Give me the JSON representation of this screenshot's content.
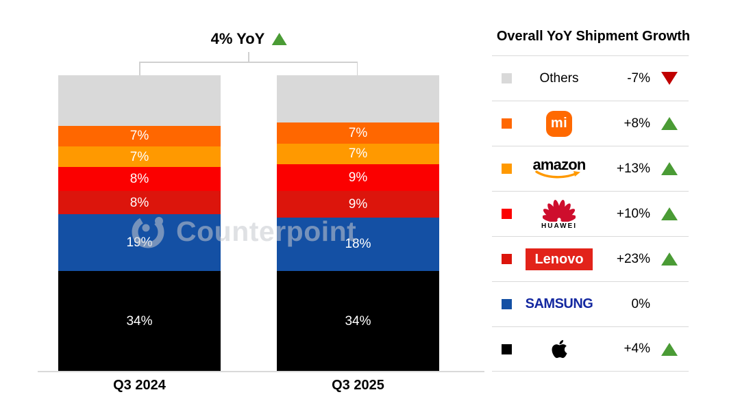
{
  "annotation": {
    "label": "4% YoY",
    "direction": "up"
  },
  "watermark": {
    "text": "Counterpoint"
  },
  "chart_data": {
    "type": "bar",
    "stacked": true,
    "unit": "%",
    "title": "4% YoY",
    "categories": [
      "Q3 2024",
      "Q3 2025"
    ],
    "ylim": [
      0,
      100
    ],
    "legend_position": "right",
    "series": [
      {
        "name": "Others",
        "color": "#d9d9d9",
        "values": [
          17,
          16
        ],
        "labels": [
          "",
          ""
        ],
        "yoy": "-7%"
      },
      {
        "name": "Xiaomi",
        "color": "#ff6700",
        "values": [
          7,
          7
        ],
        "labels": [
          "7%",
          "7%"
        ],
        "yoy": "+8%"
      },
      {
        "name": "Amazon",
        "color": "#ff9900",
        "values": [
          7,
          7
        ],
        "labels": [
          "7%",
          "7%"
        ],
        "yoy": "+13%"
      },
      {
        "name": "Huawei",
        "color": "#fb0000",
        "values": [
          8,
          9
        ],
        "labels": [
          "8%",
          "9%"
        ],
        "yoy": "+10%"
      },
      {
        "name": "Lenovo",
        "color": "#dc150c",
        "values": [
          8,
          9
        ],
        "labels": [
          "8%",
          "9%"
        ],
        "yoy": "+23%"
      },
      {
        "name": "Samsung",
        "color": "#1450a4",
        "values": [
          19,
          18
        ],
        "labels": [
          "19%",
          "18%"
        ],
        "yoy": "0%"
      },
      {
        "name": "Apple",
        "color": "#000000",
        "values": [
          34,
          34
        ],
        "labels": [
          "34%",
          "34%"
        ],
        "yoy": "+4%"
      }
    ]
  },
  "legend": {
    "header": "Overall YoY Shipment Growth",
    "rows": [
      {
        "name": "Others",
        "swatch": "#d9d9d9",
        "display_text": "Others",
        "value": "-7%",
        "direction": "down"
      },
      {
        "name": "Xiaomi",
        "swatch": "#ff6700",
        "logo_text": "mi",
        "value": "+8%",
        "direction": "up"
      },
      {
        "name": "Amazon",
        "swatch": "#ff9900",
        "logo_text": "amazon",
        "value": "+13%",
        "direction": "up"
      },
      {
        "name": "Huawei",
        "swatch": "#fb0000",
        "logo_text": "HUAWEI",
        "value": "+10%",
        "direction": "up"
      },
      {
        "name": "Lenovo",
        "swatch": "#dc150c",
        "logo_text": "Lenovo",
        "value": "+23%",
        "direction": "up"
      },
      {
        "name": "Samsung",
        "swatch": "#1450a4",
        "logo_text": "SAMSUNG",
        "value": "0%",
        "direction": "none"
      },
      {
        "name": "Apple",
        "swatch": "#000000",
        "value": "+4%",
        "direction": "up"
      }
    ]
  },
  "colors": {
    "up_triangle": "#4a9b35",
    "down_triangle": "#c00000",
    "bracket_line": "#d0d0d0",
    "axis_line": "#d9d9d9",
    "huawei_crimson": "#ce0e2d",
    "lenovo_badge": "#e2231a",
    "samsung_text": "#1428a0",
    "mi_badge": "#ff6900",
    "amazon_smile": "#ff9900"
  }
}
